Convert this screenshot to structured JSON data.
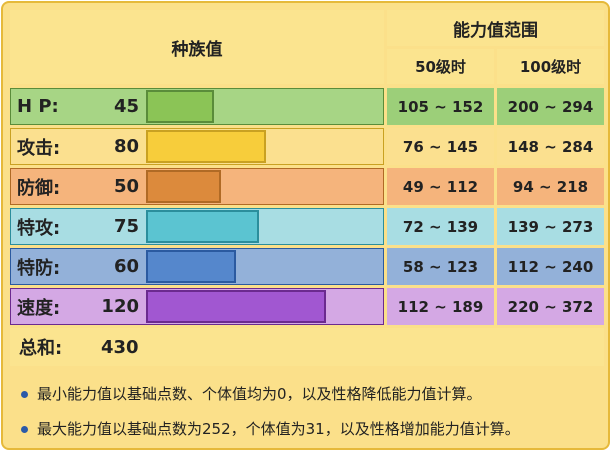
{
  "header": {
    "title": "种族值",
    "range_title": "能力值范围",
    "level50": "50级时",
    "level100": "100级时"
  },
  "rows": [
    {
      "label": "H P:",
      "value": 45,
      "range50": "105 ~ 152",
      "range100": "200 ~ 294"
    },
    {
      "label": "攻击:",
      "value": 80,
      "range50": "76 ~ 145",
      "range100": "148 ~ 284"
    },
    {
      "label": "防御:",
      "value": 50,
      "range50": "49 ~ 112",
      "range100": "94 ~ 218"
    },
    {
      "label": "特攻:",
      "value": 75,
      "range50": "72 ~ 139",
      "range100": "139 ~ 273"
    },
    {
      "label": "特防:",
      "value": 60,
      "range50": "58 ~ 123",
      "range100": "112 ~ 240"
    },
    {
      "label": "速度:",
      "value": 120,
      "range50": "112 ~ 189",
      "range100": "220 ~ 372"
    }
  ],
  "total": {
    "label": "总和:",
    "value": 430
  },
  "notes": [
    "最小能力值以基础点数、个体值均为0，以及性格降低能力值计算。",
    "最大能力值以基础点数为252，个体值为31，以及性格增加能力值计算。"
  ]
}
